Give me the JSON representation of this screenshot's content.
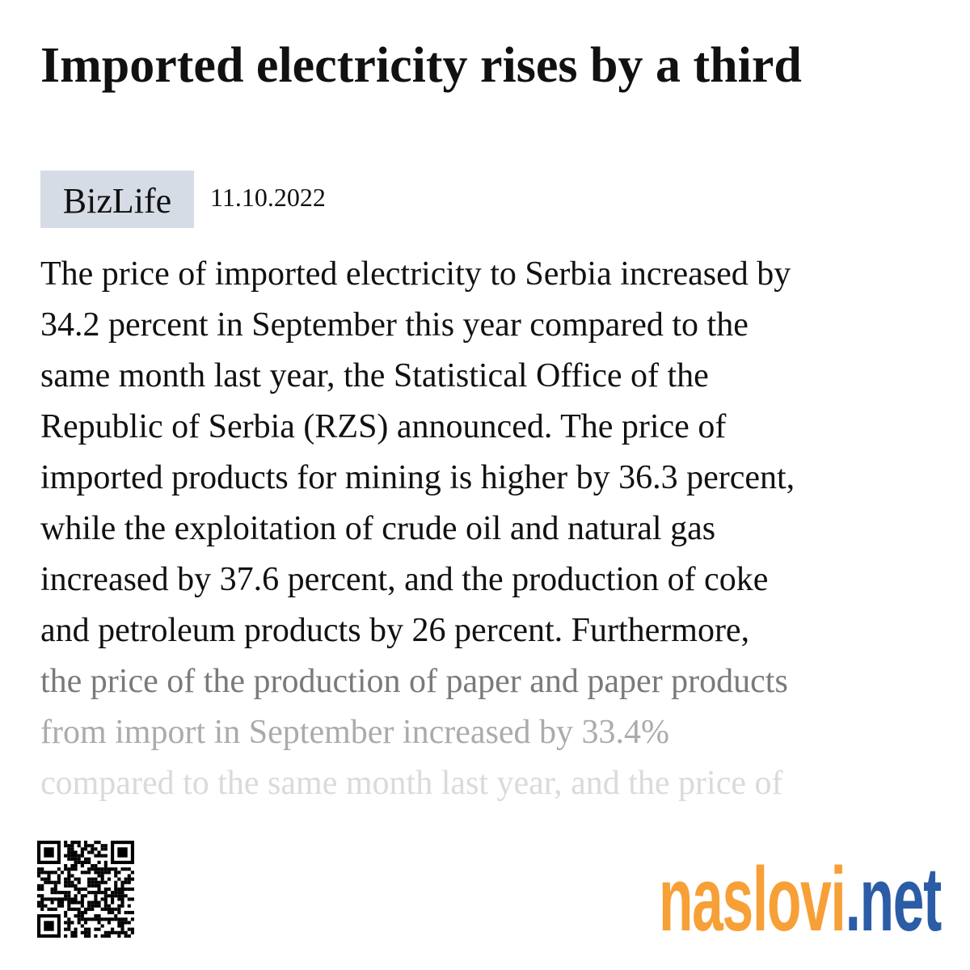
{
  "header": {
    "title": "Imported electricity rises by a third",
    "source": "BizLife",
    "date": "11.10.2022"
  },
  "body": {
    "lines": [
      "The price of imported electricity to Serbia increased by",
      "34.2 percent in September this year compared to the",
      "same month last year, the Statistical Office of the",
      "Republic of Serbia (RZS) announced. The price of",
      "imported products for mining is higher by 36.3 percent,",
      "while the exploitation of crude oil and natural gas",
      "increased by 37.6 percent, and the production of coke",
      "and petroleum products by 26 percent. Furthermore,",
      "the price of the production of paper and paper products",
      "from import in September increased by 33.4%",
      "compared to the same month last year, and the price of"
    ]
  },
  "footer": {
    "logo_main": "naslovi",
    "logo_domain": ".net"
  }
}
